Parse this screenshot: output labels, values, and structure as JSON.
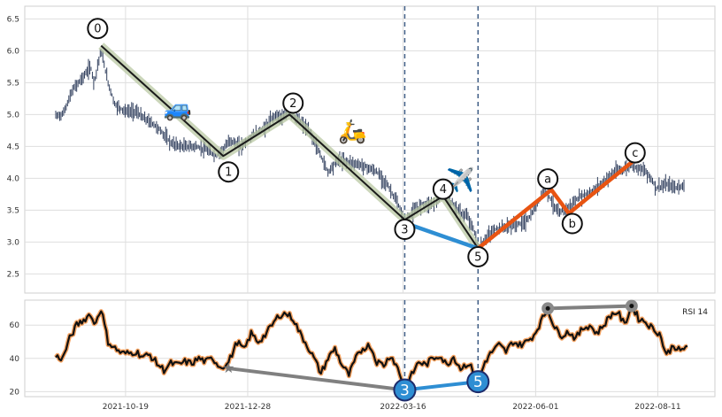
{
  "chart_data": [
    {
      "type": "candlestick",
      "panel": "price",
      "ylim": [
        2.2,
        6.7
      ],
      "yticks": [
        "2.5",
        "3.0",
        "3.5",
        "4.0",
        "4.5",
        "5.0",
        "5.5",
        "6.0",
        "6.5"
      ],
      "ytick_values": [
        2.5,
        3.0,
        3.5,
        4.0,
        4.5,
        5.0,
        5.5,
        6.0,
        6.5
      ],
      "x_range_days": [
        0,
        380
      ],
      "grid": true,
      "series_anchors": [
        {
          "x": 0,
          "y": 4.98
        },
        {
          "x": 4,
          "y": 5.0
        },
        {
          "x": 10,
          "y": 5.4
        },
        {
          "x": 16,
          "y": 5.6
        },
        {
          "x": 20,
          "y": 5.75
        },
        {
          "x": 22,
          "y": 5.5
        },
        {
          "x": 25,
          "y": 5.9
        },
        {
          "x": 26,
          "y": 6.0
        },
        {
          "x": 30,
          "y": 5.5
        },
        {
          "x": 34,
          "y": 5.15
        },
        {
          "x": 40,
          "y": 5.05
        },
        {
          "x": 46,
          "y": 5.05
        },
        {
          "x": 50,
          "y": 4.95
        },
        {
          "x": 56,
          "y": 4.85
        },
        {
          "x": 60,
          "y": 4.75
        },
        {
          "x": 66,
          "y": 4.55
        },
        {
          "x": 72,
          "y": 4.5
        },
        {
          "x": 80,
          "y": 4.5
        },
        {
          "x": 86,
          "y": 4.45
        },
        {
          "x": 92,
          "y": 4.35
        },
        {
          "x": 96,
          "y": 4.45
        },
        {
          "x": 100,
          "y": 4.6
        },
        {
          "x": 106,
          "y": 4.5
        },
        {
          "x": 114,
          "y": 4.7
        },
        {
          "x": 120,
          "y": 4.8
        },
        {
          "x": 126,
          "y": 5.0
        },
        {
          "x": 130,
          "y": 4.95
        },
        {
          "x": 134,
          "y": 5.02
        },
        {
          "x": 140,
          "y": 4.9
        },
        {
          "x": 146,
          "y": 4.7
        },
        {
          "x": 152,
          "y": 4.35
        },
        {
          "x": 156,
          "y": 4.1
        },
        {
          "x": 162,
          "y": 4.3
        },
        {
          "x": 168,
          "y": 4.25
        },
        {
          "x": 176,
          "y": 4.2
        },
        {
          "x": 184,
          "y": 4.1
        },
        {
          "x": 190,
          "y": 3.9
        },
        {
          "x": 196,
          "y": 3.6
        },
        {
          "x": 200,
          "y": 3.3
        },
        {
          "x": 204,
          "y": 3.45
        },
        {
          "x": 210,
          "y": 3.6
        },
        {
          "x": 216,
          "y": 3.6
        },
        {
          "x": 222,
          "y": 3.75
        },
        {
          "x": 226,
          "y": 3.65
        },
        {
          "x": 232,
          "y": 3.45
        },
        {
          "x": 236,
          "y": 3.4
        },
        {
          "x": 240,
          "y": 3.15
        },
        {
          "x": 242,
          "y": 2.9
        },
        {
          "x": 246,
          "y": 3.05
        },
        {
          "x": 252,
          "y": 3.2
        },
        {
          "x": 260,
          "y": 3.25
        },
        {
          "x": 268,
          "y": 3.3
        },
        {
          "x": 272,
          "y": 3.4
        },
        {
          "x": 276,
          "y": 3.6
        },
        {
          "x": 280,
          "y": 3.85
        },
        {
          "x": 284,
          "y": 3.65
        },
        {
          "x": 288,
          "y": 3.45
        },
        {
          "x": 294,
          "y": 3.55
        },
        {
          "x": 300,
          "y": 3.7
        },
        {
          "x": 308,
          "y": 3.8
        },
        {
          "x": 314,
          "y": 3.95
        },
        {
          "x": 320,
          "y": 4.1
        },
        {
          "x": 326,
          "y": 4.15
        },
        {
          "x": 330,
          "y": 4.2
        },
        {
          "x": 336,
          "y": 4.15
        },
        {
          "x": 340,
          "y": 4.05
        },
        {
          "x": 344,
          "y": 3.85
        },
        {
          "x": 350,
          "y": 3.9
        },
        {
          "x": 356,
          "y": 3.85
        },
        {
          "x": 360,
          "y": 3.9
        }
      ],
      "wave_segments": [
        {
          "color": "#1a1a1a",
          "glow": true,
          "points": [
            [
              26,
              6.08
            ],
            [
              96,
              4.35
            ],
            [
              134,
              5.0
            ],
            [
              200,
              3.35
            ],
            [
              222,
              3.72
            ],
            [
              242,
              2.9
            ]
          ]
        },
        {
          "color": "#2e8ed3",
          "points": [
            [
              200,
              3.3
            ],
            [
              242,
              2.9
            ]
          ]
        },
        {
          "color": "#e85412",
          "points": [
            [
              242,
              2.9
            ],
            [
              284,
              3.82
            ],
            [
              294,
              3.45
            ],
            [
              330,
              4.25
            ]
          ]
        }
      ],
      "wave_labels": [
        {
          "label": "0",
          "x": 24,
          "y": 6.35
        },
        {
          "label": "1",
          "x": 99,
          "y": 4.1
        },
        {
          "label": "2",
          "x": 136,
          "y": 5.18
        },
        {
          "label": "3",
          "x": 200,
          "y": 3.2
        },
        {
          "label": "4",
          "x": 222,
          "y": 3.83
        },
        {
          "label": "5",
          "x": 242,
          "y": 2.77
        },
        {
          "label": "a",
          "x": 282,
          "y": 3.99
        },
        {
          "label": "b",
          "x": 296,
          "y": 3.29
        },
        {
          "label": "c",
          "x": 332,
          "y": 4.4
        }
      ],
      "vlines_days": [
        200,
        242
      ],
      "emoji_markers": [
        {
          "glyph": "🚙",
          "x": 70,
          "y": 4.98
        },
        {
          "glyph": "🛵",
          "x": 170,
          "y": 4.62
        },
        {
          "glyph": "✈️",
          "x": 232,
          "y": 3.85
        }
      ]
    },
    {
      "type": "line",
      "panel": "rsi",
      "legend": "RSI 14",
      "ylim": [
        17,
        75
      ],
      "yticks": [
        "20",
        "40",
        "60"
      ],
      "ytick_values": [
        20,
        40,
        60
      ],
      "xtick_labels": [
        "2021-10-19",
        "2021-12-28",
        "2022-03-16",
        "2022-06-01",
        "2022-08-11"
      ],
      "xtick_days": [
        40,
        110,
        199,
        275,
        345
      ],
      "grid": true,
      "rsi_anchors": [
        {
          "x": 0,
          "y": 41
        },
        {
          "x": 4,
          "y": 40
        },
        {
          "x": 8,
          "y": 52
        },
        {
          "x": 12,
          "y": 60
        },
        {
          "x": 16,
          "y": 63
        },
        {
          "x": 20,
          "y": 67
        },
        {
          "x": 22,
          "y": 60
        },
        {
          "x": 26,
          "y": 70
        },
        {
          "x": 30,
          "y": 50
        },
        {
          "x": 34,
          "y": 46
        },
        {
          "x": 38,
          "y": 43
        },
        {
          "x": 42,
          "y": 43
        },
        {
          "x": 46,
          "y": 44
        },
        {
          "x": 50,
          "y": 41
        },
        {
          "x": 54,
          "y": 42
        },
        {
          "x": 58,
          "y": 37
        },
        {
          "x": 62,
          "y": 33
        },
        {
          "x": 66,
          "y": 37
        },
        {
          "x": 70,
          "y": 36
        },
        {
          "x": 74,
          "y": 38
        },
        {
          "x": 78,
          "y": 37
        },
        {
          "x": 82,
          "y": 40
        },
        {
          "x": 86,
          "y": 38
        },
        {
          "x": 90,
          "y": 40
        },
        {
          "x": 94,
          "y": 35
        },
        {
          "x": 98,
          "y": 36
        },
        {
          "x": 100,
          "y": 40
        },
        {
          "x": 104,
          "y": 50
        },
        {
          "x": 108,
          "y": 45
        },
        {
          "x": 112,
          "y": 55
        },
        {
          "x": 116,
          "y": 50
        },
        {
          "x": 120,
          "y": 54
        },
        {
          "x": 124,
          "y": 60
        },
        {
          "x": 128,
          "y": 66
        },
        {
          "x": 132,
          "y": 67
        },
        {
          "x": 136,
          "y": 64
        },
        {
          "x": 140,
          "y": 55
        },
        {
          "x": 144,
          "y": 48
        },
        {
          "x": 148,
          "y": 40
        },
        {
          "x": 152,
          "y": 31
        },
        {
          "x": 156,
          "y": 40
        },
        {
          "x": 160,
          "y": 46
        },
        {
          "x": 164,
          "y": 36
        },
        {
          "x": 168,
          "y": 30
        },
        {
          "x": 172,
          "y": 40
        },
        {
          "x": 176,
          "y": 46
        },
        {
          "x": 180,
          "y": 48
        },
        {
          "x": 184,
          "y": 38
        },
        {
          "x": 188,
          "y": 36
        },
        {
          "x": 192,
          "y": 42
        },
        {
          "x": 196,
          "y": 34
        },
        {
          "x": 200,
          "y": 22
        },
        {
          "x": 204,
          "y": 30
        },
        {
          "x": 208,
          "y": 38
        },
        {
          "x": 212,
          "y": 36
        },
        {
          "x": 216,
          "y": 40
        },
        {
          "x": 220,
          "y": 42
        },
        {
          "x": 224,
          "y": 36
        },
        {
          "x": 228,
          "y": 41
        },
        {
          "x": 232,
          "y": 34
        },
        {
          "x": 236,
          "y": 37
        },
        {
          "x": 240,
          "y": 32
        },
        {
          "x": 242,
          "y": 25
        },
        {
          "x": 246,
          "y": 38
        },
        {
          "x": 250,
          "y": 44
        },
        {
          "x": 254,
          "y": 48
        },
        {
          "x": 258,
          "y": 44
        },
        {
          "x": 262,
          "y": 50
        },
        {
          "x": 266,
          "y": 48
        },
        {
          "x": 270,
          "y": 50
        },
        {
          "x": 274,
          "y": 54
        },
        {
          "x": 278,
          "y": 62
        },
        {
          "x": 282,
          "y": 70
        },
        {
          "x": 286,
          "y": 58
        },
        {
          "x": 290,
          "y": 54
        },
        {
          "x": 294,
          "y": 56
        },
        {
          "x": 298,
          "y": 52
        },
        {
          "x": 302,
          "y": 58
        },
        {
          "x": 306,
          "y": 60
        },
        {
          "x": 310,
          "y": 55
        },
        {
          "x": 314,
          "y": 60
        },
        {
          "x": 318,
          "y": 66
        },
        {
          "x": 322,
          "y": 68
        },
        {
          "x": 326,
          "y": 60
        },
        {
          "x": 330,
          "y": 72
        },
        {
          "x": 334,
          "y": 64
        },
        {
          "x": 338,
          "y": 62
        },
        {
          "x": 342,
          "y": 58
        },
        {
          "x": 346,
          "y": 55
        },
        {
          "x": 350,
          "y": 42
        },
        {
          "x": 354,
          "y": 48
        },
        {
          "x": 358,
          "y": 44
        },
        {
          "x": 360,
          "y": 46
        },
        {
          "x": 362,
          "y": 48
        }
      ],
      "divergence_lines": [
        {
          "color": "#808080",
          "from": [
            99,
            34
          ],
          "to": [
            200,
            21
          ],
          "from_marker": "star"
        },
        {
          "color": "#2e8ed3",
          "from": [
            200,
            21
          ],
          "to": [
            242,
            26
          ]
        },
        {
          "color": "#808080",
          "from": [
            282,
            70
          ],
          "to": [
            330,
            71.5
          ],
          "from_marker": "circle",
          "to_marker": "circle"
        }
      ],
      "wave_badges": [
        {
          "label": "3",
          "x": 200,
          "y": 21
        },
        {
          "label": "5",
          "x": 242,
          "y": 26
        }
      ]
    }
  ]
}
